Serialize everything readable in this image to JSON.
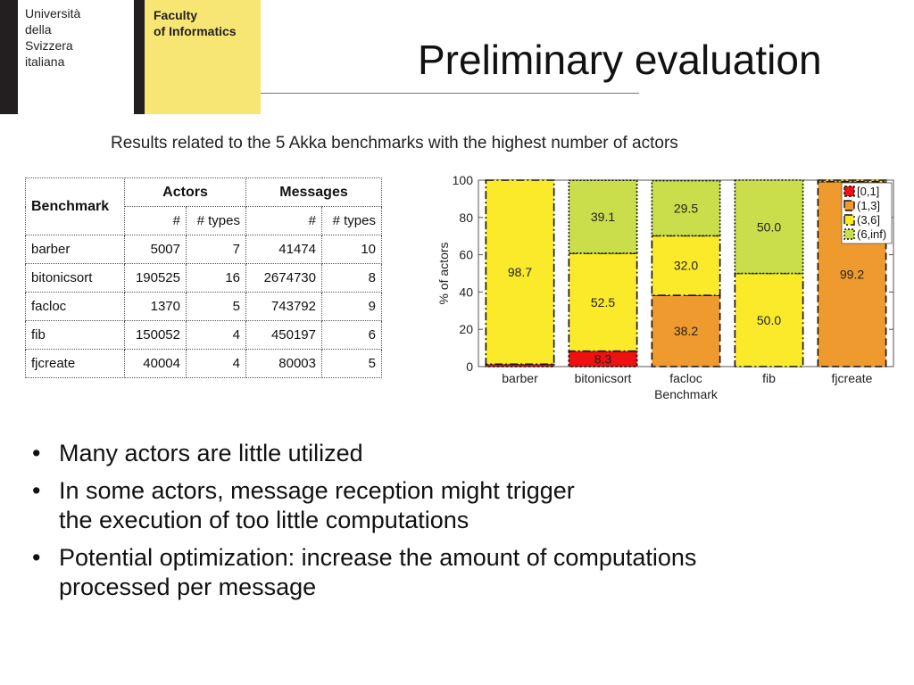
{
  "logo": {
    "university_lines": [
      "Università",
      "della",
      "Svizzera",
      "italiana"
    ],
    "faculty_lines": [
      "Faculty",
      "of Informatics"
    ]
  },
  "slide": {
    "title": "Preliminary evaluation",
    "subtitle": "Results related to the 5 Akka benchmarks with the highest number of actors"
  },
  "table": {
    "header_benchmark": "Benchmark",
    "header_actors": "Actors",
    "header_messages": "Messages",
    "sub_num": "#",
    "sub_types": "# types",
    "rows": [
      {
        "benchmark": "barber",
        "actors": "5007",
        "actor_types": "7",
        "messages": "41474",
        "message_types": "10"
      },
      {
        "benchmark": "bitonicsort",
        "actors": "190525",
        "actor_types": "16",
        "messages": "2674730",
        "message_types": "8"
      },
      {
        "benchmark": "facloc",
        "actors": "1370",
        "actor_types": "5",
        "messages": "743792",
        "message_types": "9"
      },
      {
        "benchmark": "fib",
        "actors": "150052",
        "actor_types": "4",
        "messages": "450197",
        "message_types": "6"
      },
      {
        "benchmark": "fjcreate",
        "actors": "40004",
        "actor_types": "4",
        "messages": "80003",
        "message_types": "5"
      }
    ]
  },
  "chart_data": {
    "type": "bar",
    "stacked": true,
    "categories": [
      "barber",
      "bitonicsort",
      "facloc",
      "fib",
      "fjcreate"
    ],
    "xlabel": "Benchmark",
    "ylabel": "% of actors",
    "ylim": [
      0,
      100
    ],
    "yticks": [
      0,
      20,
      40,
      60,
      80,
      100
    ],
    "legend_position": "top-right",
    "series": [
      {
        "name": "[0,1]",
        "color": "#ee1111",
        "values": [
          1.3,
          8.3,
          0,
          0,
          0
        ],
        "labels": [
          "",
          "8.3",
          "",
          "",
          ""
        ]
      },
      {
        "name": "(1,3]",
        "color": "#ee9a2e",
        "values": [
          0,
          0,
          38.2,
          0,
          99.2
        ],
        "labels": [
          "",
          "",
          "38.2",
          "",
          "99.2"
        ]
      },
      {
        "name": "(3,6]",
        "color": "#fbea2a",
        "values": [
          98.7,
          52.5,
          32.0,
          50.0,
          0.8
        ],
        "labels": [
          "98.7",
          "52.5",
          "32.0",
          "50.0",
          ""
        ]
      },
      {
        "name": "(6,inf)",
        "color": "#c9de4a",
        "values": [
          0,
          39.1,
          29.5,
          50.0,
          0
        ],
        "labels": [
          "",
          "39.1",
          "29.5",
          "50.0",
          ""
        ]
      }
    ]
  },
  "bullets": [
    {
      "lines": [
        "Many actors are little utilized"
      ]
    },
    {
      "lines": [
        "In some actors, message reception might trigger",
        "the execution of too little computations"
      ]
    },
    {
      "lines": [
        "Potential optimization: increase the amount of computations",
        "processed per message"
      ]
    }
  ]
}
